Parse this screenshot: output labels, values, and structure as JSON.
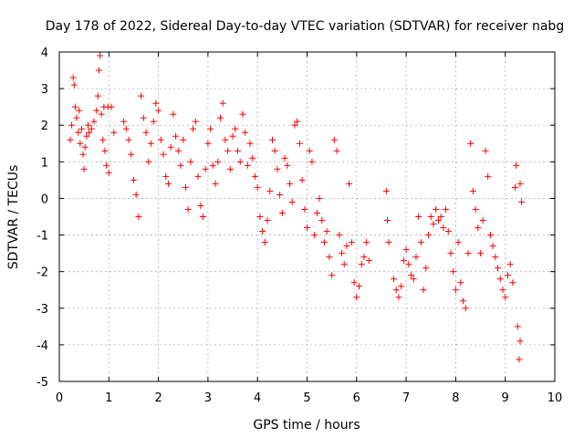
{
  "chart_data": {
    "type": "scatter",
    "title": "Day 178 of 2022, Sidereal Day-to-day VTEC variation (SDTVAR) for receiver nabg",
    "xlabel": "GPS time / hours",
    "ylabel": "SDTVAR / TECUs",
    "xlim": [
      0,
      10
    ],
    "ylim": [
      -5,
      4
    ],
    "x_ticks": [
      "0",
      "1",
      "2",
      "3",
      "4",
      "5",
      "6",
      "7",
      "8",
      "9",
      "10"
    ],
    "y_ticks": [
      "4",
      "3",
      "2",
      "1",
      "0",
      "-1",
      "-2",
      "-3",
      "-4",
      "-5"
    ],
    "grid": true,
    "marker": "+",
    "series": [
      {
        "name": "SDTVAR",
        "color": "#ff0000",
        "points": [
          [
            0.22,
            1.6
          ],
          [
            0.25,
            2.0
          ],
          [
            0.28,
            3.3
          ],
          [
            0.3,
            3.1
          ],
          [
            0.32,
            2.5
          ],
          [
            0.35,
            2.2
          ],
          [
            0.38,
            1.8
          ],
          [
            0.4,
            2.4
          ],
          [
            0.42,
            1.5
          ],
          [
            0.45,
            1.9
          ],
          [
            0.48,
            1.2
          ],
          [
            0.5,
            0.8
          ],
          [
            0.52,
            1.4
          ],
          [
            0.55,
            1.7
          ],
          [
            0.58,
            2.0
          ],
          [
            0.6,
            1.8
          ],
          [
            0.65,
            1.9
          ],
          [
            0.7,
            2.1
          ],
          [
            0.75,
            2.4
          ],
          [
            0.78,
            2.8
          ],
          [
            0.8,
            3.5
          ],
          [
            0.82,
            3.9
          ],
          [
            0.85,
            2.3
          ],
          [
            0.88,
            1.6
          ],
          [
            0.9,
            2.5
          ],
          [
            0.92,
            1.3
          ],
          [
            0.95,
            0.9
          ],
          [
            0.98,
            2.5
          ],
          [
            1.0,
            0.7
          ],
          [
            1.05,
            2.5
          ],
          [
            1.1,
            1.8
          ],
          [
            1.3,
            2.1
          ],
          [
            1.35,
            1.9
          ],
          [
            1.4,
            1.6
          ],
          [
            1.45,
            1.2
          ],
          [
            1.5,
            0.5
          ],
          [
            1.55,
            0.1
          ],
          [
            1.6,
            -0.5
          ],
          [
            1.65,
            2.8
          ],
          [
            1.7,
            2.2
          ],
          [
            1.75,
            1.8
          ],
          [
            1.8,
            1.0
          ],
          [
            1.85,
            1.5
          ],
          [
            1.9,
            2.1
          ],
          [
            1.95,
            2.6
          ],
          [
            2.0,
            2.4
          ],
          [
            2.05,
            1.6
          ],
          [
            2.1,
            1.2
          ],
          [
            2.15,
            0.6
          ],
          [
            2.2,
            0.4
          ],
          [
            2.25,
            1.4
          ],
          [
            2.3,
            2.3
          ],
          [
            2.35,
            1.7
          ],
          [
            2.4,
            1.3
          ],
          [
            2.45,
            0.9
          ],
          [
            2.5,
            1.6
          ],
          [
            2.55,
            0.3
          ],
          [
            2.6,
            -0.3
          ],
          [
            2.65,
            1.0
          ],
          [
            2.7,
            1.9
          ],
          [
            2.75,
            2.1
          ],
          [
            2.8,
            0.6
          ],
          [
            2.85,
            -0.2
          ],
          [
            2.9,
            -0.5
          ],
          [
            2.95,
            0.8
          ],
          [
            3.0,
            1.5
          ],
          [
            3.05,
            1.9
          ],
          [
            3.1,
            0.9
          ],
          [
            3.15,
            0.4
          ],
          [
            3.2,
            1.0
          ],
          [
            3.25,
            2.2
          ],
          [
            3.3,
            2.6
          ],
          [
            3.35,
            1.6
          ],
          [
            3.4,
            1.3
          ],
          [
            3.45,
            0.8
          ],
          [
            3.5,
            1.7
          ],
          [
            3.55,
            1.9
          ],
          [
            3.6,
            1.3
          ],
          [
            3.65,
            1.0
          ],
          [
            3.7,
            2.3
          ],
          [
            3.75,
            1.8
          ],
          [
            3.8,
            0.9
          ],
          [
            3.85,
            1.5
          ],
          [
            3.9,
            1.1
          ],
          [
            3.95,
            0.6
          ],
          [
            4.0,
            0.3
          ],
          [
            4.05,
            -0.5
          ],
          [
            4.1,
            -0.9
          ],
          [
            4.15,
            -1.2
          ],
          [
            4.2,
            -0.6
          ],
          [
            4.25,
            0.2
          ],
          [
            4.3,
            1.6
          ],
          [
            4.35,
            1.3
          ],
          [
            4.4,
            0.8
          ],
          [
            4.45,
            0.1
          ],
          [
            4.5,
            -0.4
          ],
          [
            4.55,
            1.1
          ],
          [
            4.6,
            0.9
          ],
          [
            4.65,
            0.4
          ],
          [
            4.7,
            -0.1
          ],
          [
            4.75,
            2.0
          ],
          [
            4.8,
            2.1
          ],
          [
            4.85,
            1.5
          ],
          [
            4.9,
            0.5
          ],
          [
            4.95,
            -0.3
          ],
          [
            5.0,
            -0.8
          ],
          [
            5.05,
            1.3
          ],
          [
            5.1,
            1.0
          ],
          [
            5.15,
            -1.0
          ],
          [
            5.2,
            -0.4
          ],
          [
            5.25,
            0.0
          ],
          [
            5.3,
            -0.6
          ],
          [
            5.35,
            -1.2
          ],
          [
            5.4,
            -0.9
          ],
          [
            5.45,
            -1.6
          ],
          [
            5.5,
            -2.1
          ],
          [
            5.55,
            1.6
          ],
          [
            5.6,
            1.3
          ],
          [
            5.65,
            -1.0
          ],
          [
            5.7,
            -1.5
          ],
          [
            5.75,
            -1.8
          ],
          [
            5.8,
            -1.3
          ],
          [
            5.85,
            0.4
          ],
          [
            5.9,
            -1.2
          ],
          [
            5.95,
            -2.3
          ],
          [
            6.0,
            -2.7
          ],
          [
            6.05,
            -2.4
          ],
          [
            6.1,
            -1.8
          ],
          [
            6.15,
            -1.6
          ],
          [
            6.2,
            -1.2
          ],
          [
            6.25,
            -1.7
          ],
          [
            6.6,
            0.2
          ],
          [
            6.62,
            -0.6
          ],
          [
            6.65,
            -1.2
          ],
          [
            6.75,
            -2.2
          ],
          [
            6.8,
            -2.5
          ],
          [
            6.85,
            -2.7
          ],
          [
            6.9,
            -2.4
          ],
          [
            6.95,
            -1.7
          ],
          [
            7.0,
            -1.4
          ],
          [
            7.05,
            -1.8
          ],
          [
            7.1,
            -2.1
          ],
          [
            7.15,
            -2.2
          ],
          [
            7.2,
            -1.6
          ],
          [
            7.25,
            -0.5
          ],
          [
            7.3,
            -1.2
          ],
          [
            7.35,
            -2.5
          ],
          [
            7.4,
            -1.9
          ],
          [
            7.45,
            -1.0
          ],
          [
            7.5,
            -0.5
          ],
          [
            7.55,
            -0.7
          ],
          [
            7.6,
            -0.3
          ],
          [
            7.65,
            -0.6
          ],
          [
            7.7,
            -0.5
          ],
          [
            7.75,
            -0.8
          ],
          [
            7.8,
            -0.3
          ],
          [
            7.85,
            -0.9
          ],
          [
            7.9,
            -1.5
          ],
          [
            7.95,
            -2.0
          ],
          [
            8.0,
            -2.5
          ],
          [
            8.05,
            -1.2
          ],
          [
            8.1,
            -2.3
          ],
          [
            8.15,
            -2.8
          ],
          [
            8.2,
            -3.0
          ],
          [
            8.25,
            -1.5
          ],
          [
            8.3,
            1.5
          ],
          [
            8.35,
            0.2
          ],
          [
            8.4,
            -0.3
          ],
          [
            8.45,
            -0.8
          ],
          [
            8.5,
            -1.5
          ],
          [
            8.55,
            -0.6
          ],
          [
            8.6,
            1.3
          ],
          [
            8.65,
            0.6
          ],
          [
            8.7,
            -1.0
          ],
          [
            8.75,
            -1.3
          ],
          [
            8.8,
            -1.6
          ],
          [
            8.85,
            -1.9
          ],
          [
            8.9,
            -2.2
          ],
          [
            8.95,
            -2.5
          ],
          [
            9.0,
            -2.7
          ],
          [
            9.05,
            -2.1
          ],
          [
            9.1,
            -1.8
          ],
          [
            9.15,
            -2.3
          ],
          [
            9.2,
            0.3
          ],
          [
            9.22,
            0.9
          ],
          [
            9.25,
            -3.5
          ],
          [
            9.28,
            -4.4
          ],
          [
            9.3,
            0.4
          ],
          [
            9.33,
            -0.1
          ],
          [
            9.3,
            -3.9
          ]
        ]
      }
    ]
  }
}
